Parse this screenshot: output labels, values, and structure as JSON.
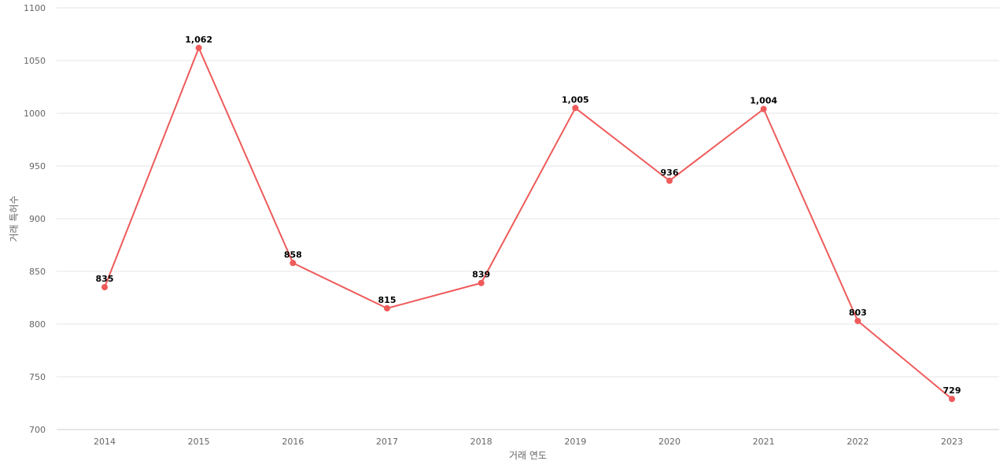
{
  "chart_data": {
    "type": "line",
    "title": "",
    "xlabel": "거래 연도",
    "ylabel": "거래 특허수",
    "x": [
      "2014",
      "2015",
      "2016",
      "2017",
      "2018",
      "2019",
      "2020",
      "2021",
      "2022",
      "2023"
    ],
    "series": [
      {
        "values": [
          835,
          1062,
          858,
          815,
          839,
          1005,
          936,
          1004,
          803,
          729
        ],
        "data_labels": [
          "835",
          "1,062",
          "858",
          "815",
          "839",
          "1,005",
          "936",
          "1,004",
          "803",
          "729"
        ],
        "color": "#ef5a5a"
      }
    ],
    "ylim": [
      700,
      1100
    ],
    "yticks": [
      "700",
      "750",
      "800",
      "850",
      "900",
      "950",
      "1000",
      "1050",
      "1100"
    ],
    "grid": true,
    "legend": "none"
  }
}
